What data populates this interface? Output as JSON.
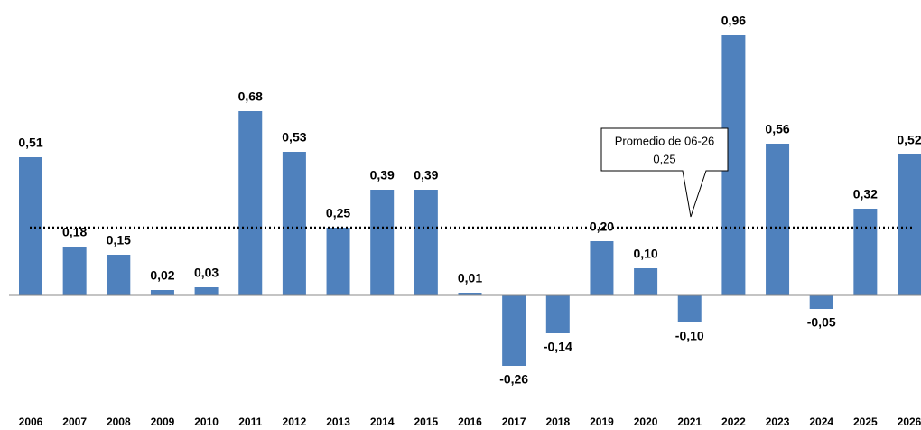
{
  "chart_data": {
    "type": "bar",
    "categories": [
      "2006",
      "2007",
      "2008",
      "2009",
      "2010",
      "2011",
      "2012",
      "2013",
      "2014",
      "2015",
      "2016",
      "2017",
      "2018",
      "2019",
      "2020",
      "2021",
      "2022",
      "2023",
      "2024",
      "2025",
      "2026"
    ],
    "values": [
      0.51,
      0.18,
      0.15,
      0.02,
      0.03,
      0.68,
      0.53,
      0.25,
      0.39,
      0.39,
      0.01,
      -0.26,
      -0.14,
      0.2,
      0.1,
      -0.1,
      0.96,
      0.56,
      -0.05,
      0.32,
      0.52
    ],
    "value_labels": [
      "0,51",
      "0,18",
      "0,15",
      "0,02",
      "0,03",
      "0,68",
      "0,53",
      "0,25",
      "0,39",
      "0,39",
      "0,01",
      "-0,26",
      "-0,14",
      "0,20",
      "0,10",
      "-0,10",
      "0,96",
      "0,56",
      "-0,05",
      "0,32",
      "0,52"
    ],
    "color": "#4f81bd",
    "ylim": [
      -0.4,
      1.0
    ],
    "average": {
      "title": "Promedio de 06-26",
      "value": 0.25,
      "label": "0,25"
    }
  }
}
